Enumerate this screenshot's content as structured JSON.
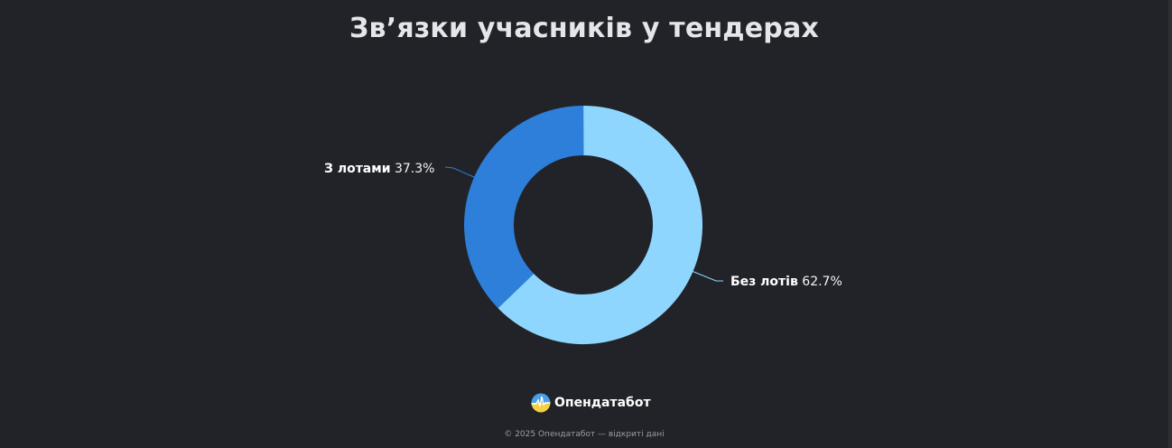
{
  "title": "Звʼязки учасників у тендерах",
  "chart_data": {
    "type": "pie",
    "variant": "donut",
    "title": "Звʼязки учасників у тендерах",
    "categories": [
      "Без лотів",
      "З лотами"
    ],
    "values": [
      62.7,
      37.3
    ],
    "unit": "%",
    "colors": [
      "#8fd6ff",
      "#2e7fd9"
    ],
    "labels": [
      {
        "name": "Без лотів",
        "value": "62.7%"
      },
      {
        "name": "З лотами",
        "value": "37.3%"
      }
    ],
    "legend": "none (data labels with leader lines)"
  },
  "labels": {
    "slice_bez": {
      "name": "Без лотів",
      "pct": "62.7%"
    },
    "slice_z": {
      "name": "З лотами",
      "pct": "37.3%"
    }
  },
  "brand": {
    "name": "Опендатабот"
  },
  "footer": {
    "text": "© 2025 Опендатабот — відкриті дані"
  },
  "colors": {
    "background": "#212328",
    "light_blue": "#8fd6ff",
    "blue": "#2e7fd9"
  }
}
